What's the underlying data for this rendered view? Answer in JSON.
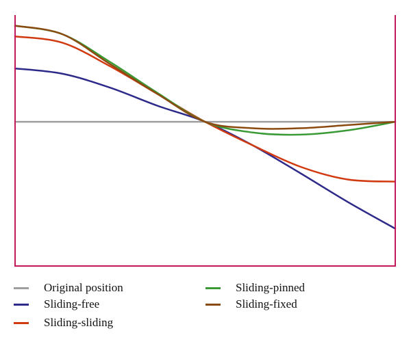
{
  "chart_data": {
    "type": "line",
    "title": "",
    "xlabel": "",
    "ylabel": "",
    "xlim": [
      0,
      1
    ],
    "ylim": [
      -1.35,
      1.0
    ],
    "grid": false,
    "legend_position": "bottom",
    "frame_color": "#c2185b",
    "x": [
      0,
      0.125,
      0.25,
      0.375,
      0.5,
      0.625,
      0.75,
      0.875,
      1.0
    ],
    "series": [
      {
        "name": "Original position",
        "color": "#9e9e9e",
        "values": [
          0,
          0,
          0,
          0,
          0,
          0,
          0,
          0,
          0
        ]
      },
      {
        "name": "Sliding-free",
        "color": "#2e2a8a",
        "values": [
          0.5,
          0.45,
          0.32,
          0.15,
          0,
          -0.22,
          -0.48,
          -0.75,
          -1.0
        ]
      },
      {
        "name": "Sliding-sliding",
        "color": "#d13a10",
        "values": [
          0.8,
          0.74,
          0.52,
          0.26,
          0,
          -0.22,
          -0.42,
          -0.54,
          -0.56
        ]
      },
      {
        "name": "Sliding-pinned",
        "color": "#3a9a35",
        "values": [
          0.9,
          0.82,
          0.56,
          0.27,
          0,
          -0.1,
          -0.12,
          -0.08,
          0
        ]
      },
      {
        "name": "Sliding-fixed",
        "color": "#8b4a10",
        "values": [
          0.9,
          0.82,
          0.54,
          0.26,
          0,
          -0.06,
          -0.06,
          -0.03,
          0
        ]
      }
    ]
  },
  "legend": {
    "items": [
      {
        "label": "Original position",
        "color": "#9e9e9e"
      },
      {
        "label": "Sliding-free",
        "color": "#2e2a8a"
      },
      {
        "label": "Sliding-sliding",
        "color": "#d13a10"
      },
      {
        "label": "Sliding-pinned",
        "color": "#3a9a35"
      },
      {
        "label": "Sliding-fixed",
        "color": "#8b4a10"
      }
    ]
  }
}
